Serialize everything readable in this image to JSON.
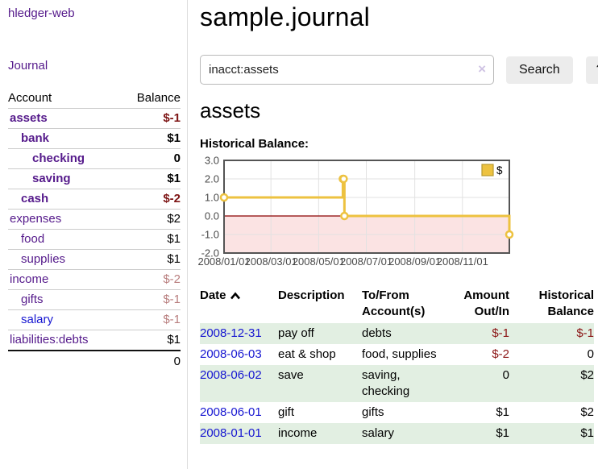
{
  "colors": {
    "link_purple": "#551a8b",
    "link_blue": "#1616d1",
    "negative": "#8b1515",
    "negative_strong": "#7d1414",
    "negative_faded": "#b87e7e",
    "row_green": "#e2efe2",
    "series_gold": "#edc240",
    "chart_fill_pink": "#fbe3e3",
    "zero_line": "#8b0000",
    "button_gray": "#ececec"
  },
  "sidebar": {
    "brand": "hledger-web",
    "journal_link": "Journal",
    "accounts": {
      "headers": {
        "account": "Account",
        "balance": "Balance"
      },
      "rows": [
        {
          "account": "assets",
          "level": 0,
          "bold": true,
          "balance": "$-1",
          "neg": "strong"
        },
        {
          "account": "bank",
          "level": 1,
          "bold": true,
          "balance": "$1",
          "neg": "none"
        },
        {
          "account": "checking",
          "level": 2,
          "bold": true,
          "balance": "0",
          "neg": "none"
        },
        {
          "account": "saving",
          "level": 2,
          "bold": true,
          "balance": "$1",
          "neg": "none"
        },
        {
          "account": "cash",
          "level": 1,
          "bold": true,
          "balance": "$-2",
          "neg": "strong"
        },
        {
          "account": "expenses",
          "level": 0,
          "bold": false,
          "balance": "$2",
          "neg": "none"
        },
        {
          "account": "food",
          "level": 1,
          "bold": false,
          "balance": "$1",
          "neg": "none"
        },
        {
          "account": "supplies",
          "level": 1,
          "bold": false,
          "balance": "$1",
          "neg": "none"
        },
        {
          "account": "income",
          "level": 0,
          "bold": false,
          "balance": "$-2",
          "neg": "faded"
        },
        {
          "account": "gifts",
          "level": 1,
          "bold": false,
          "balance": "$-1",
          "neg": "faded"
        },
        {
          "account": "salary",
          "level": 1,
          "bold": false,
          "balance": "$-1",
          "neg": "faded",
          "link_color": "blue"
        },
        {
          "account": "liabilities:debts",
          "level": 0,
          "bold": false,
          "balance": "$1",
          "neg": "none"
        }
      ],
      "total": "0"
    }
  },
  "header": {
    "title": "sample.journal"
  },
  "search": {
    "value": "inacct:assets",
    "clear_icon": "×",
    "button_label": "Search",
    "help_label": "?"
  },
  "account_page": {
    "heading": "assets",
    "chart_label": "Historical Balance:"
  },
  "chart_data": {
    "type": "line",
    "style": "step",
    "title": "Historical Balance",
    "legend": [
      {
        "label": "$",
        "color": "#edc240"
      }
    ],
    "x_ticks": [
      "2008/01/01",
      "2008/03/01",
      "2008/05/01",
      "2008/07/01",
      "2008/09/01",
      "2008/11/01"
    ],
    "y_ticks": [
      "3.0",
      "2.0",
      "1.0",
      "0.0",
      "-1.0",
      "-2.0"
    ],
    "ylim": [
      -2,
      3
    ],
    "xlim_days": [
      0,
      365
    ],
    "points": [
      [
        "2008-01-01",
        1
      ],
      [
        "2008-06-01",
        2
      ],
      [
        "2008-06-02",
        2
      ],
      [
        "2008-06-03",
        0
      ],
      [
        "2008-12-31",
        -1
      ]
    ],
    "grid": true,
    "negative_region_fill": "#fbe3e3",
    "zero_line_color": "#8b0000",
    "series_color": "#edc240"
  },
  "journal_table": {
    "columns": [
      {
        "line1": "Date",
        "line2": "",
        "sort": "asc",
        "align": "left"
      },
      {
        "line1": "Description",
        "line2": "",
        "align": "left"
      },
      {
        "line1": "To/From",
        "line2": "Account(s)",
        "align": "left"
      },
      {
        "line1": "Amount",
        "line2": "Out/In",
        "align": "right"
      },
      {
        "line1": "Historical",
        "line2": "Balance",
        "align": "right"
      }
    ],
    "rows": [
      {
        "date": "2008-12-31",
        "description": "pay off",
        "tofrom": "debts",
        "amount": "$-1",
        "amount_neg": true,
        "balance": "$-1",
        "balance_neg": true
      },
      {
        "date": "2008-06-03",
        "description": "eat & shop",
        "tofrom": "food, supplies",
        "amount": "$-2",
        "amount_neg": true,
        "balance": "0",
        "balance_neg": false
      },
      {
        "date": "2008-06-02",
        "description": "save",
        "tofrom": "saving, checking",
        "amount": "0",
        "amount_neg": false,
        "balance": "$2",
        "balance_neg": false
      },
      {
        "date": "2008-06-01",
        "description": "gift",
        "tofrom": "gifts",
        "amount": "$1",
        "amount_neg": false,
        "balance": "$2",
        "balance_neg": false
      },
      {
        "date": "2008-01-01",
        "description": "income",
        "tofrom": "salary",
        "amount": "$1",
        "amount_neg": false,
        "balance": "$1",
        "balance_neg": false
      }
    ]
  }
}
